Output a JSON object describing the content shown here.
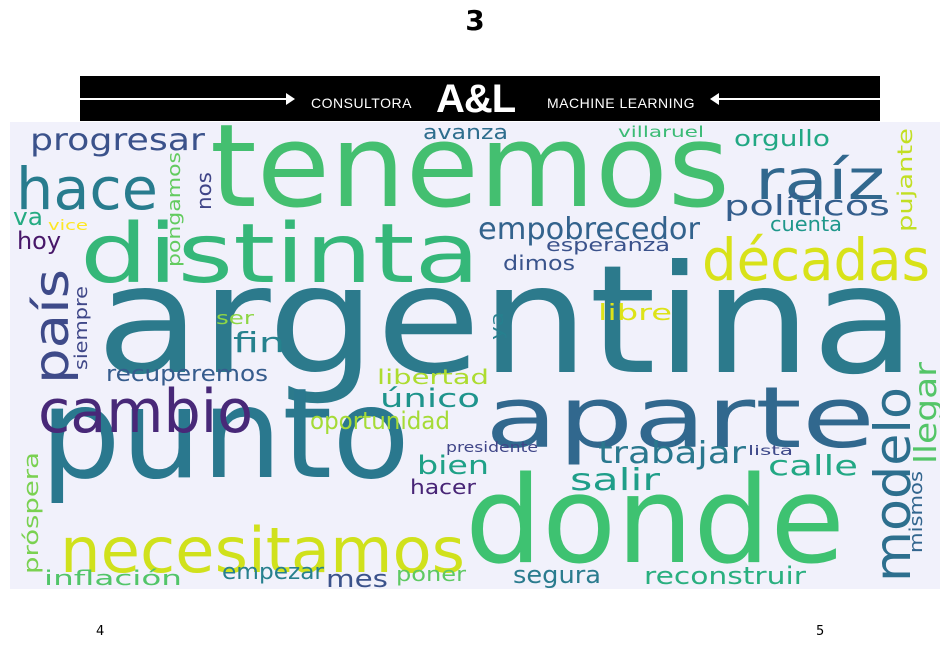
{
  "page_title": "3",
  "banner": {
    "left_text": "CONSULTORA",
    "brand": "A&L",
    "right_text": "MACHINE LEARNING"
  },
  "wordcloud": {
    "words": [
      {
        "text": "argentina",
        "color": "#2c7a8c"
      },
      {
        "text": "tenemos",
        "color": "#44bf70"
      },
      {
        "text": "punto",
        "color": "#2a788e"
      },
      {
        "text": "donde",
        "color": "#3ec271"
      },
      {
        "text": "aparte",
        "color": "#31688e"
      },
      {
        "text": "distinta",
        "color": "#35b779"
      },
      {
        "text": "necesitamos",
        "color": "#d0e11c"
      },
      {
        "text": "cambio",
        "color": "#482878"
      },
      {
        "text": "hace",
        "color": "#287c8e"
      },
      {
        "text": "raíz",
        "color": "#31688e"
      },
      {
        "text": "décadas",
        "color": "#d8e219"
      },
      {
        "text": "modelo",
        "color": "#2d6f8e"
      },
      {
        "text": "país",
        "color": "#3e4a89"
      },
      {
        "text": "progresar",
        "color": "#3b528b"
      },
      {
        "text": "empobrecedor",
        "color": "#33638d"
      },
      {
        "text": "políticos",
        "color": "#355f8d"
      },
      {
        "text": "trabajar",
        "color": "#2a788e"
      },
      {
        "text": "llegar",
        "color": "#54c568"
      },
      {
        "text": "calle",
        "color": "#22a884"
      },
      {
        "text": "salir",
        "color": "#1f9e89"
      },
      {
        "text": "reconstruir",
        "color": "#29af7f"
      },
      {
        "text": "segura",
        "color": "#2a7b8e"
      },
      {
        "text": "oportunidad",
        "color": "#a5db36"
      },
      {
        "text": "único",
        "color": "#1f948c"
      },
      {
        "text": "bien",
        "color": "#1fa187"
      },
      {
        "text": "hacer",
        "color": "#482576"
      },
      {
        "text": "recuperemos",
        "color": "#365c8d"
      },
      {
        "text": "fin",
        "color": "#26828e"
      },
      {
        "text": "hoy",
        "color": "#481769"
      },
      {
        "text": "va",
        "color": "#25ab82"
      },
      {
        "text": "orgullo",
        "color": "#22a884"
      },
      {
        "text": "avanza",
        "color": "#2e6e8e"
      },
      {
        "text": "cuenta",
        "color": "#1f978b"
      },
      {
        "text": "esperanza",
        "color": "#3b528b"
      },
      {
        "text": "dimos",
        "color": "#3a548c"
      },
      {
        "text": "libre",
        "color": "#dde318"
      },
      {
        "text": "libertad",
        "color": "#addc30"
      },
      {
        "text": "inflación",
        "color": "#52c569"
      },
      {
        "text": "empezar",
        "color": "#27808e"
      },
      {
        "text": "mes",
        "color": "#3b528b"
      },
      {
        "text": "poner",
        "color": "#5ec962"
      },
      {
        "text": "próspera",
        "color": "#7ad151"
      },
      {
        "text": "pujante",
        "color": "#c2df23"
      },
      {
        "text": "mismos",
        "color": "#32658e"
      },
      {
        "text": "siempre",
        "color": "#3f4788"
      },
      {
        "text": "pongamos",
        "color": "#63cb5f"
      },
      {
        "text": "nos",
        "color": "#404588"
      },
      {
        "text": "ser",
        "color": "#8ed645"
      },
      {
        "text": "ya",
        "color": "#277f8e"
      },
      {
        "text": "villaruel",
        "color": "#3bbb75"
      },
      {
        "text": "vice",
        "color": "#fde725"
      },
      {
        "text": "presidente",
        "color": "#404688"
      },
      {
        "text": "lista",
        "color": "#3e4989"
      }
    ]
  },
  "page_numbers": {
    "left": "4",
    "right": "5"
  }
}
